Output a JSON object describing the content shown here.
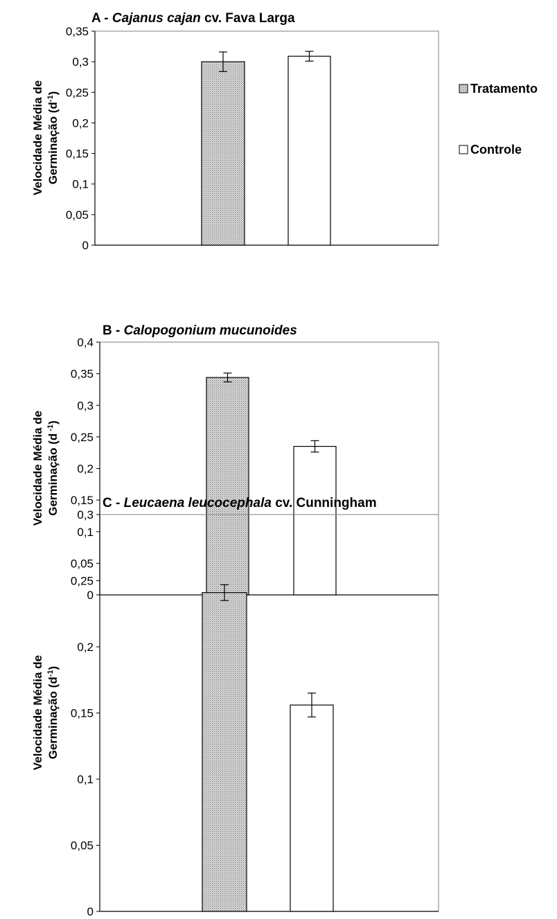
{
  "legend": {
    "position": "right",
    "items": [
      {
        "label": "Tratamento",
        "pattern": "dotted-gray"
      },
      {
        "label": "Controle",
        "pattern": "white"
      }
    ]
  },
  "chart_data": [
    {
      "type": "bar",
      "title_prefix": "A - ",
      "title_italic": "Cajanus cajan",
      "title_suffix": " cv. Fava Larga",
      "ylabel_line1": "Velocidade Média de",
      "ylabel_line2": "Germinação (d",
      "ylabel_sup": "-1",
      "ylabel_end": ")",
      "ylim": [
        0,
        0.35
      ],
      "yticks": [
        0,
        0.05,
        0.1,
        0.15,
        0.2,
        0.25,
        0.3,
        0.35
      ],
      "ytick_labels": [
        "0",
        "0,05",
        "0,1",
        "0,15",
        "0,2",
        "0,25",
        "0,3",
        "0,35"
      ],
      "grid": false,
      "series": [
        {
          "name": "Tratamento",
          "values": [
            0.3
          ],
          "error": [
            0.016
          ]
        },
        {
          "name": "Controle",
          "values": [
            0.309
          ],
          "error": [
            0.008
          ]
        }
      ]
    },
    {
      "type": "bar",
      "title_prefix": "B - ",
      "title_italic": "Calopogonium mucunoides",
      "title_suffix": "",
      "ylabel_line1": "Velocidade Média de",
      "ylabel_line2": "Germinação (d",
      "ylabel_sup": " -1",
      "ylabel_end": ")",
      "ylim": [
        0,
        0.4
      ],
      "yticks": [
        0,
        0.05,
        0.1,
        0.15,
        0.2,
        0.25,
        0.3,
        0.35,
        0.4
      ],
      "ytick_labels": [
        "0",
        "0,05",
        "0,1",
        "0,15",
        "0,2",
        "0,25",
        "0,3",
        "0,35",
        "0,4"
      ],
      "grid": false,
      "series": [
        {
          "name": "Tratamento",
          "values": [
            0.344
          ],
          "error": [
            0.007
          ]
        },
        {
          "name": "Controle",
          "values": [
            0.235
          ],
          "error": [
            0.009
          ]
        }
      ]
    },
    {
      "type": "bar",
      "title_prefix": "C - ",
      "title_italic": "Leucaena leucocephala",
      "title_suffix": " cv. Cunningham",
      "ylabel_line1": "Velocidade Média de",
      "ylabel_line2": "Germinação (d",
      "ylabel_sup": "-1",
      "ylabel_end": ")",
      "ylim": [
        0,
        0.3
      ],
      "yticks": [
        0,
        0.05,
        0.1,
        0.15,
        0.2,
        0.25,
        0.3
      ],
      "ytick_labels": [
        "0",
        "0,05",
        "0,1",
        "0,15",
        "0,2",
        "0,25",
        "0,3"
      ],
      "grid": false,
      "series": [
        {
          "name": "Tratamento",
          "values": [
            0.241
          ],
          "error": [
            0.006
          ]
        },
        {
          "name": "Controle",
          "values": [
            0.156
          ],
          "error": [
            0.009
          ]
        }
      ]
    }
  ]
}
